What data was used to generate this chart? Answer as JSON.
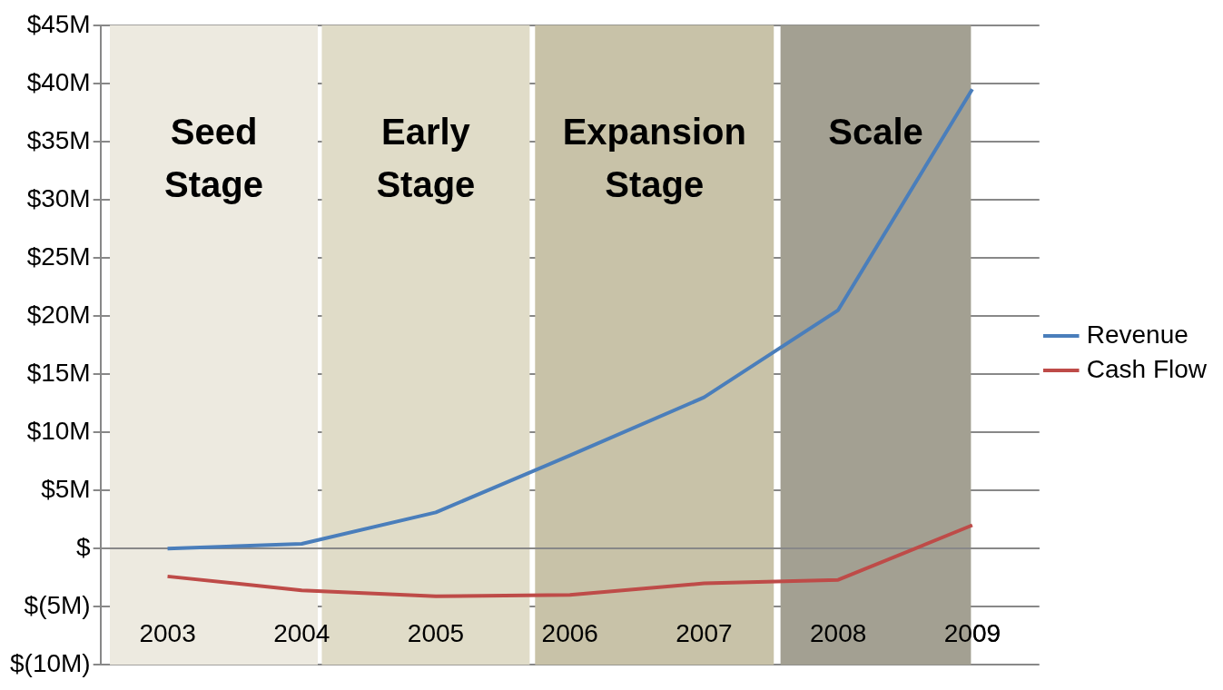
{
  "chart_data": {
    "type": "line",
    "x": [
      2003,
      2004,
      2005,
      2006,
      2007,
      2008,
      2009
    ],
    "xlim": [
      2002.5,
      2009.5
    ],
    "xticks": [
      2003,
      2004,
      2005,
      2006,
      2007,
      2008,
      2009
    ],
    "ylim": [
      -10,
      45
    ],
    "yticks": [
      {
        "value": -10,
        "label": "$(10M)"
      },
      {
        "value": -5,
        "label": "$(5M)"
      },
      {
        "value": 0,
        "label": "$"
      },
      {
        "value": 5,
        "label": "$5M"
      },
      {
        "value": 10,
        "label": "$10M"
      },
      {
        "value": 15,
        "label": "$15M"
      },
      {
        "value": 20,
        "label": "$20M"
      },
      {
        "value": 25,
        "label": "$25M"
      },
      {
        "value": 30,
        "label": "$30M"
      },
      {
        "value": 35,
        "label": "$35M"
      },
      {
        "value": 40,
        "label": "$40M"
      },
      {
        "value": 45,
        "label": "$45M"
      }
    ],
    "series": [
      {
        "name": "Revenue",
        "color": "#4a7ebb",
        "values": [
          0,
          0.4,
          3.1,
          8.0,
          13.0,
          20.5,
          39.5
        ]
      },
      {
        "name": "Cash Flow",
        "color": "#be4b48",
        "values": [
          -2.4,
          -3.6,
          -4.1,
          -4.0,
          -3.0,
          -2.7,
          2.0
        ]
      }
    ],
    "bands": [
      {
        "axis": "x",
        "from": 2002.57,
        "to": 2004.12,
        "label": "Seed Stage",
        "color": "#edeae0"
      },
      {
        "axis": "x",
        "from": 2004.15,
        "to": 2005.7,
        "label": "Early Stage",
        "color": "#e0dcc8"
      },
      {
        "axis": "x",
        "from": 2005.74,
        "to": 2007.52,
        "label": "Expansion Stage",
        "color": "#c8c2a8"
      },
      {
        "axis": "x",
        "from": 2007.57,
        "to": 2008.99,
        "label": "Scale",
        "color": "#a3a092"
      }
    ],
    "grid": "y",
    "legend": "right",
    "marker": "none",
    "line_style": "solid"
  }
}
